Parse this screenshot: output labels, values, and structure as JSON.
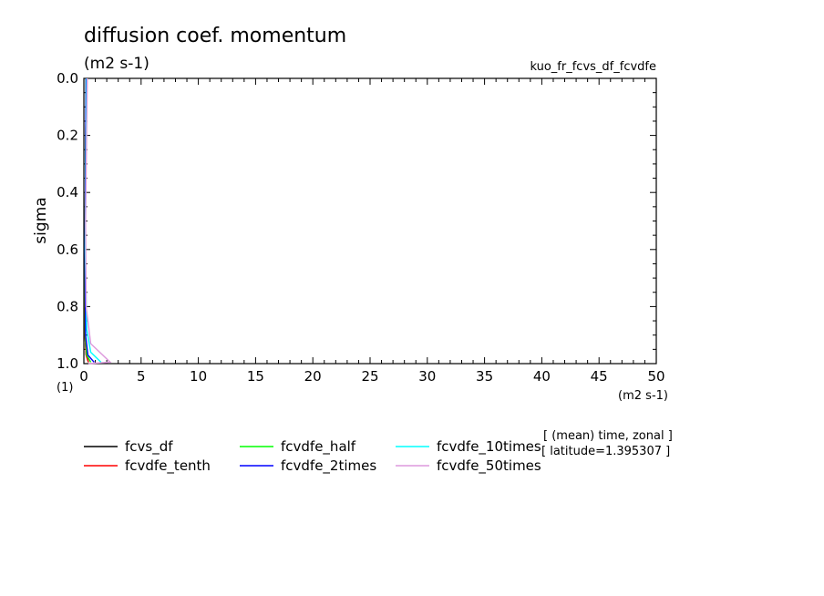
{
  "chart_data": {
    "type": "line",
    "title": "diffusion coef. momentum",
    "subtitle": "(m2 s-1)",
    "experiment": "kuo_fr_fcvs_df_fcvdfe",
    "xlabel": "",
    "x_units": "(m2 s-1)",
    "ylabel": "sigma",
    "y_units": "(1)",
    "xlim": [
      0,
      50
    ],
    "ylim": [
      1.0,
      0.0
    ],
    "x_ticks": [
      "0",
      "5",
      "10",
      "15",
      "20",
      "25",
      "30",
      "35",
      "40",
      "45",
      "50"
    ],
    "y_ticks": [
      "0.0",
      "0.2",
      "0.4",
      "0.6",
      "0.8",
      "1.0"
    ],
    "grid": false,
    "legend_placement": "bottom",
    "annotation_lines": [
      "[ (mean) time, zonal ]",
      "[ latitude=1.395307 ]"
    ],
    "series": [
      {
        "name": "fcvs_df",
        "color": "#000000",
        "points": [
          [
            0.2,
            0.0
          ],
          [
            0.1,
            0.6
          ],
          [
            0.1,
            0.9
          ],
          [
            0.2,
            0.97
          ],
          [
            0.4,
            0.995
          ]
        ]
      },
      {
        "name": "fcvdfe_tenth",
        "color": "#ff0000",
        "points": [
          [
            0.2,
            0.0
          ],
          [
            0.1,
            0.6
          ],
          [
            0.1,
            0.9
          ],
          [
            0.2,
            0.97
          ],
          [
            0.4,
            0.995
          ]
        ]
      },
      {
        "name": "fcvdfe_half",
        "color": "#00ff00",
        "points": [
          [
            0.2,
            0.0
          ],
          [
            0.1,
            0.6
          ],
          [
            0.12,
            0.9
          ],
          [
            0.25,
            0.97
          ],
          [
            0.6,
            0.995
          ]
        ]
      },
      {
        "name": "fcvdfe_2times",
        "color": "#0000ff",
        "points": [
          [
            0.2,
            0.0
          ],
          [
            0.1,
            0.6
          ],
          [
            0.15,
            0.9
          ],
          [
            0.35,
            0.97
          ],
          [
            0.9,
            0.995
          ]
        ]
      },
      {
        "name": "fcvdfe_10times",
        "color": "#00ffff",
        "points": [
          [
            0.25,
            0.0
          ],
          [
            0.12,
            0.6
          ],
          [
            0.25,
            0.88
          ],
          [
            0.6,
            0.96
          ],
          [
            1.5,
            0.995
          ]
        ]
      },
      {
        "name": "fcvdfe_50times",
        "color": "#dd99dd",
        "points": [
          [
            0.3,
            0.0
          ],
          [
            0.15,
            0.5
          ],
          [
            0.2,
            0.8
          ],
          [
            0.6,
            0.93
          ],
          [
            2.3,
            0.995
          ],
          [
            0.4,
            1.0
          ]
        ]
      }
    ]
  }
}
